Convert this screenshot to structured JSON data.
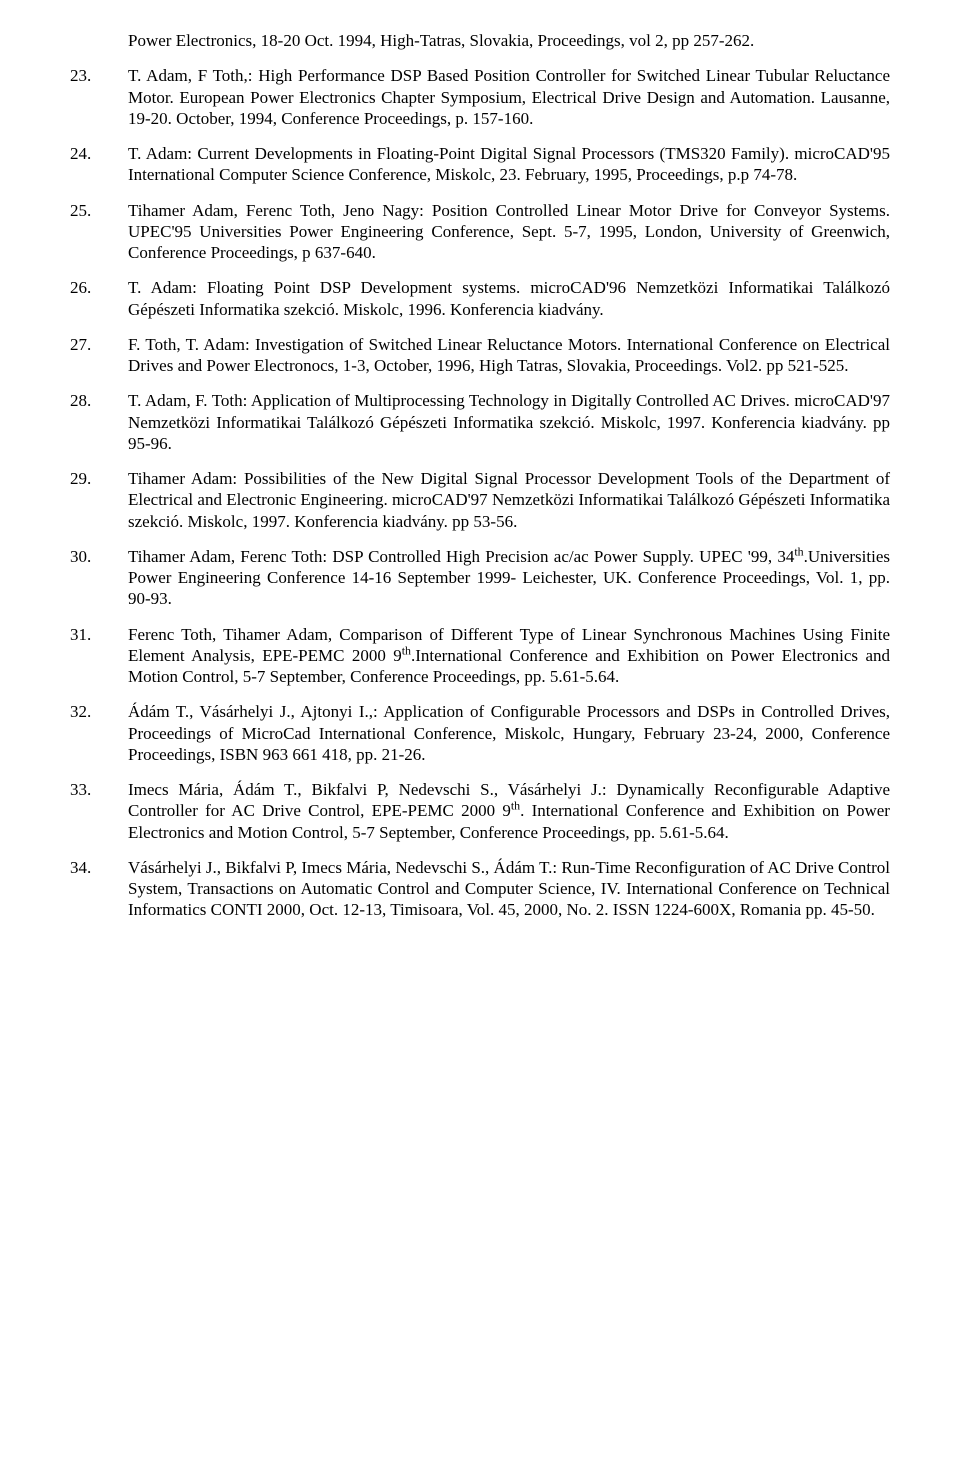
{
  "continuation": "Power Electronics, 18-20 Oct. 1994, High-Tatras, Slovakia, Proceedings, vol 2, pp 257-262.",
  "refs": [
    {
      "num": "23.",
      "text": "T. Adam, F Toth,: High Performance DSP Based Position Controller for Switched Linear Tubular Reluctance Motor. European Power Electronics Chapter Symposium, Electrical Drive Design and Automation. Lausanne, 19-20. October, 1994, Conference Proceedings, p. 157-160."
    },
    {
      "num": "24.",
      "text": "T. Adam: Current Developments in Floating-Point Digital Signal Processors (TMS320 Family). microCAD'95 International Computer Science Conference, Miskolc, 23. February, 1995, Proceedings, p.p 74-78."
    },
    {
      "num": "25.",
      "text": "Tihamer Adam, Ferenc Toth, Jeno Nagy: Position Controlled Linear Motor Drive for Conveyor Systems. UPEC'95 Universities Power Engineering Conference, Sept. 5-7, 1995, London, University of Greenwich, Conference Proceedings, p 637-640."
    },
    {
      "num": "26.",
      "text": "T. Adam: Floating Point DSP Development systems. microCAD'96 Nemzetközi Informatikai Találkozó Gépészeti Informatika szekció. Miskolc, 1996. Konferencia kiadvány."
    },
    {
      "num": "27.",
      "text": "F. Toth, T. Adam: Investigation of Switched Linear Reluctance Motors. International Conference on Electrical Drives and Power Electronocs, 1-3, October, 1996, High Tatras, Slovakia, Proceedings. Vol2. pp 521-525."
    },
    {
      "num": "28.",
      "text": "T. Adam, F. Toth: Application of Multiprocessing Technology in Digitally Controlled AC Drives. microCAD'97 Nemzetközi Informatikai Találkozó Gépészeti Informatika szekció. Miskolc, 1997. Konferencia  kiadvány. pp 95-96."
    },
    {
      "num": "29.",
      "text": "Tihamer Adam: Possibilities of the New Digital Signal Processor Development Tools of the Department of Electrical and Electronic Engineering. microCAD'97 Nemzetközi Informatikai Találkozó Gépészeti Informatika szekció. Miskolc, 1997. Konferencia  kiadvány. pp 53-56."
    },
    {
      "num": "30.",
      "text": "Tihamer Adam, Ferenc Toth: DSP Controlled High Precision ac/ac Power Supply. UPEC '99, 34<sup>th</sup>.Universities Power Engineering Conference 14-16 September 1999- Leichester, UK. Conference Proceedings, Vol. 1, pp. 90-93."
    },
    {
      "num": "31.",
      "text": "Ferenc Toth, Tihamer Adam, Comparison of Different Type of Linear Synchronous Machines Using Finite Element Analysis, EPE-PEMC 2000 9<sup>th</sup>.International Conference and Exhibition on Power Electronics and Motion Control, 5-7 September, Conference Proceedings,  pp. 5.61-5.64."
    },
    {
      "num": "32.",
      "text": "Ádám T., Vásárhelyi J., Ajtonyi I.,: Application of Configurable Processors and DSPs in Controlled Drives, Proceedings of MicroCad International Conference, Miskolc, Hungary, February 23-24, 2000, Conference Proceedings, ISBN 963 661 418, pp. 21-26."
    },
    {
      "num": "33.",
      "text": "Imecs Mária, Ádám T., Bikfalvi P, Nedevschi S., Vásárhelyi J.: Dynamically Reconfigurable Adaptive Controller for AC Drive Control, EPE-PEMC 2000 9<sup>th</sup>. International Conference and Exhibition on Power Electronics and Motion Control, 5-7 September, Conference Proceedings, pp. 5.61-5.64."
    },
    {
      "num": "34.",
      "text": "Vásárhelyi J., Bikfalvi P, Imecs Mária, Nedevschi S., Ádám T.: Run-Time Reconfiguration of AC Drive Control System, Transactions on Automatic Control and Computer Science, IV. International Conference on Technical Informatics CONTI 2000, Oct. 12-13, Timisoara, Vol. 45, 2000, No. 2. ISSN 1224-600X, Romania pp. 45-50."
    }
  ]
}
